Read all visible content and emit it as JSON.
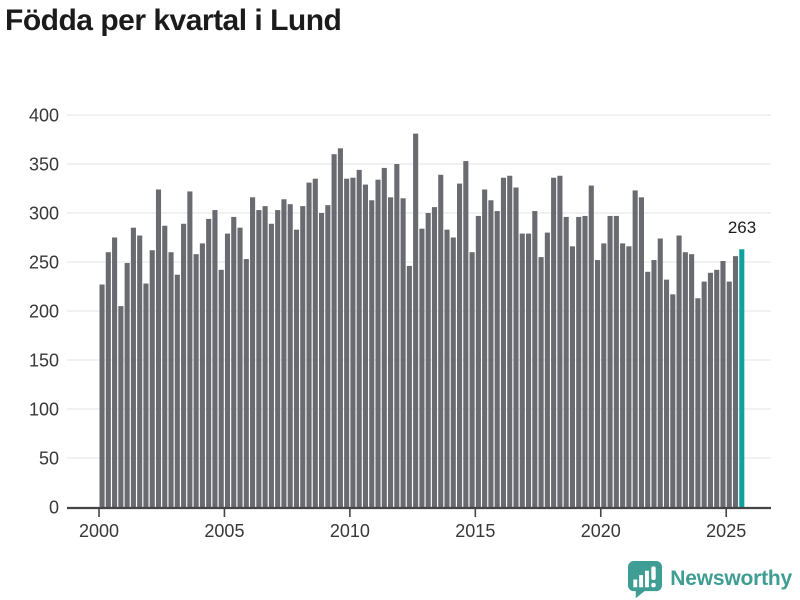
{
  "title": "Födda per kvartal i Lund",
  "branding": {
    "wordmark": "Newsworthy",
    "icon": "bar-chart-speech-bubble-icon"
  },
  "colors": {
    "bar": "#6a6a71",
    "highlight": "#0da29f",
    "grid": "#e3e3e3",
    "axis": "#454545",
    "tick_label": "#383838",
    "title": "#1b1b1b",
    "brand": "#3f9e93"
  },
  "chart_data": {
    "type": "bar",
    "title": "Födda per kvartal i Lund",
    "frequency": "quarterly",
    "start_period": "2000-Q1",
    "end_period": "2025-Q3",
    "xlabel": "",
    "ylabel": "",
    "ylim": [
      0,
      400
    ],
    "grid": "horizontal",
    "legend": "none",
    "y_ticks": [
      0,
      50,
      100,
      150,
      200,
      250,
      300,
      350,
      400
    ],
    "x_tick_labels": [
      "2000",
      "2005",
      "2010",
      "2015",
      "2020",
      "2025"
    ],
    "highlight_last_bar": true,
    "annotation": {
      "text": "263",
      "applies_to": "last-bar"
    },
    "values": [
      227,
      260,
      275,
      205,
      249,
      285,
      277,
      228,
      262,
      324,
      287,
      260,
      237,
      289,
      322,
      258,
      269,
      294,
      303,
      242,
      279,
      296,
      285,
      253,
      316,
      303,
      307,
      289,
      303,
      314,
      309,
      283,
      307,
      331,
      335,
      300,
      308,
      360,
      366,
      335,
      336,
      344,
      329,
      313,
      334,
      346,
      316,
      350,
      315,
      246,
      381,
      284,
      300,
      306,
      339,
      283,
      275,
      330,
      353,
      260,
      297,
      324,
      313,
      302,
      336,
      338,
      326,
      279,
      279,
      302,
      255,
      280,
      336,
      338,
      296,
      266,
      296,
      297,
      328,
      252,
      269,
      297,
      297,
      269,
      266,
      323,
      316,
      240,
      252,
      274,
      232,
      217,
      277,
      260,
      258,
      213,
      230,
      239,
      242,
      251,
      230,
      256,
      263
    ]
  }
}
